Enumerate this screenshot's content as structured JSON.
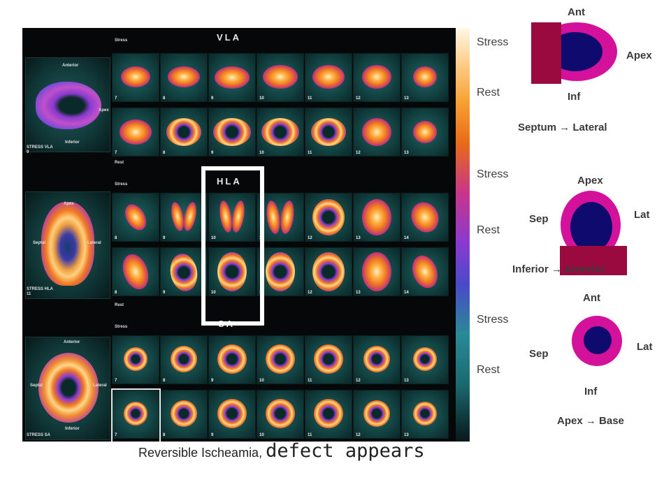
{
  "scan": {
    "sections": {
      "vla": {
        "title": "VLA",
        "stress_label": "Stress",
        "rest_label": "Rest",
        "big_label": "STRESS VLA",
        "big_num": "9",
        "big_labels": {
          "top": "Anterior",
          "right": "Apex",
          "bottom": "Inferior"
        },
        "stress_frames": [
          "7",
          "8",
          "9",
          "10",
          "11",
          "12",
          "13"
        ],
        "rest_frames": [
          "7",
          "8",
          "9",
          "10",
          "11",
          "12",
          "13"
        ]
      },
      "hla": {
        "title": "HLA",
        "stress_label": "Stress",
        "rest_label": "Rest",
        "big_label": "STRESS HLA",
        "big_num": "11",
        "big_labels": {
          "top": "Apex",
          "left": "Septal",
          "right": "Lateral"
        },
        "stress_frames": [
          "8",
          "9",
          "10",
          "11",
          "12",
          "13",
          "14"
        ],
        "rest_frames": [
          "8",
          "9",
          "10",
          "11",
          "12",
          "13",
          "14"
        ]
      },
      "sa": {
        "title": "SA",
        "stress_label": "Stress",
        "rest_label": "Rest",
        "big_label": "STRESS SA",
        "big_num": "",
        "big_labels": {
          "top": "Anterior",
          "left": "Septal",
          "right": "Lateral",
          "bottom": "Inferior"
        },
        "stress_frames": [
          "7",
          "8",
          "9",
          "10",
          "11",
          "12",
          "13"
        ],
        "rest_frames": [
          "7",
          "8",
          "9",
          "10",
          "11",
          "12",
          "13"
        ]
      }
    }
  },
  "side_labels": [
    "Stress",
    "Rest",
    "Stress",
    "Rest",
    "Stress",
    "Rest"
  ],
  "diagrams": {
    "vla": {
      "top": "Ant",
      "right": "Apex",
      "bottom": "Inf",
      "direction": "Septum → Lateral"
    },
    "hla": {
      "top": "Apex",
      "left": "Sep",
      "right": "Lat",
      "direction": "Inferior → Anterior"
    },
    "sa": {
      "top": "Ant",
      "left": "Sep",
      "right": "Lat",
      "bottom": "Inf",
      "direction": "Apex → Base"
    }
  },
  "caption": {
    "part1": "Reversible Ischeamia, ",
    "part2": "defect appears"
  },
  "colors": {
    "outer_ring": "#d4119a",
    "cavity": "#0e0a6e",
    "overlay_bar": "#9a0a3e"
  }
}
